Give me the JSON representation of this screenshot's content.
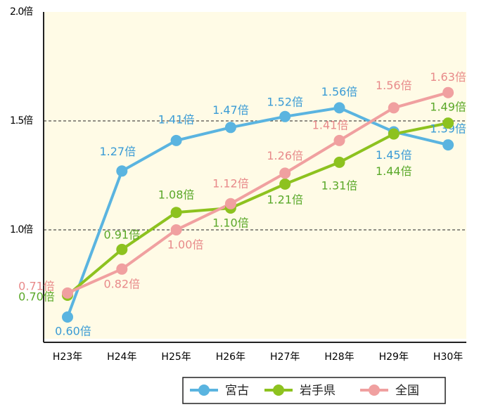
{
  "chart_data": {
    "type": "line",
    "categories": [
      "H23年",
      "H24年",
      "H25年",
      "H26年",
      "H27年",
      "H28年",
      "H29年",
      "H30年"
    ],
    "series": [
      {
        "name": "宮古",
        "color": "#5ab4e0",
        "label_color": "#3a9bd5",
        "values": [
          0.6,
          1.27,
          1.41,
          1.47,
          1.52,
          1.56,
          1.45,
          1.39
        ],
        "value_labels": [
          "0.60倍",
          "1.27倍",
          "1.41倍",
          "1.47倍",
          "1.52倍",
          "1.56倍",
          "1.45倍",
          "1.39倍"
        ]
      },
      {
        "name": "岩手県",
        "color": "#8dc21f",
        "label_color": "#5aa829",
        "values": [
          0.7,
          0.91,
          1.08,
          1.1,
          1.21,
          1.31,
          1.44,
          1.49
        ],
        "value_labels": [
          "0.70倍",
          "0.91倍",
          "1.08倍",
          "1.10倍",
          "1.21倍",
          "1.31倍",
          "1.44倍",
          "1.49倍"
        ]
      },
      {
        "name": "全国",
        "color": "#f0a0a0",
        "label_color": "#e88a8a",
        "values": [
          0.71,
          0.82,
          1.0,
          1.12,
          1.26,
          1.41,
          1.56,
          1.63
        ],
        "value_labels": [
          "0.71倍",
          "0.82倍",
          "1.00倍",
          "1.12倍",
          "1.26倍",
          "1.41倍",
          "1.56倍",
          "1.63倍"
        ]
      }
    ],
    "ylim": [
      0.5,
      2.0
    ],
    "yticks": [
      {
        "value": 1.0,
        "label": "1.0倍"
      },
      {
        "value": 1.5,
        "label": "1.5倍"
      },
      {
        "value": 2.0,
        "label": "2.0倍"
      }
    ],
    "grid": true
  }
}
